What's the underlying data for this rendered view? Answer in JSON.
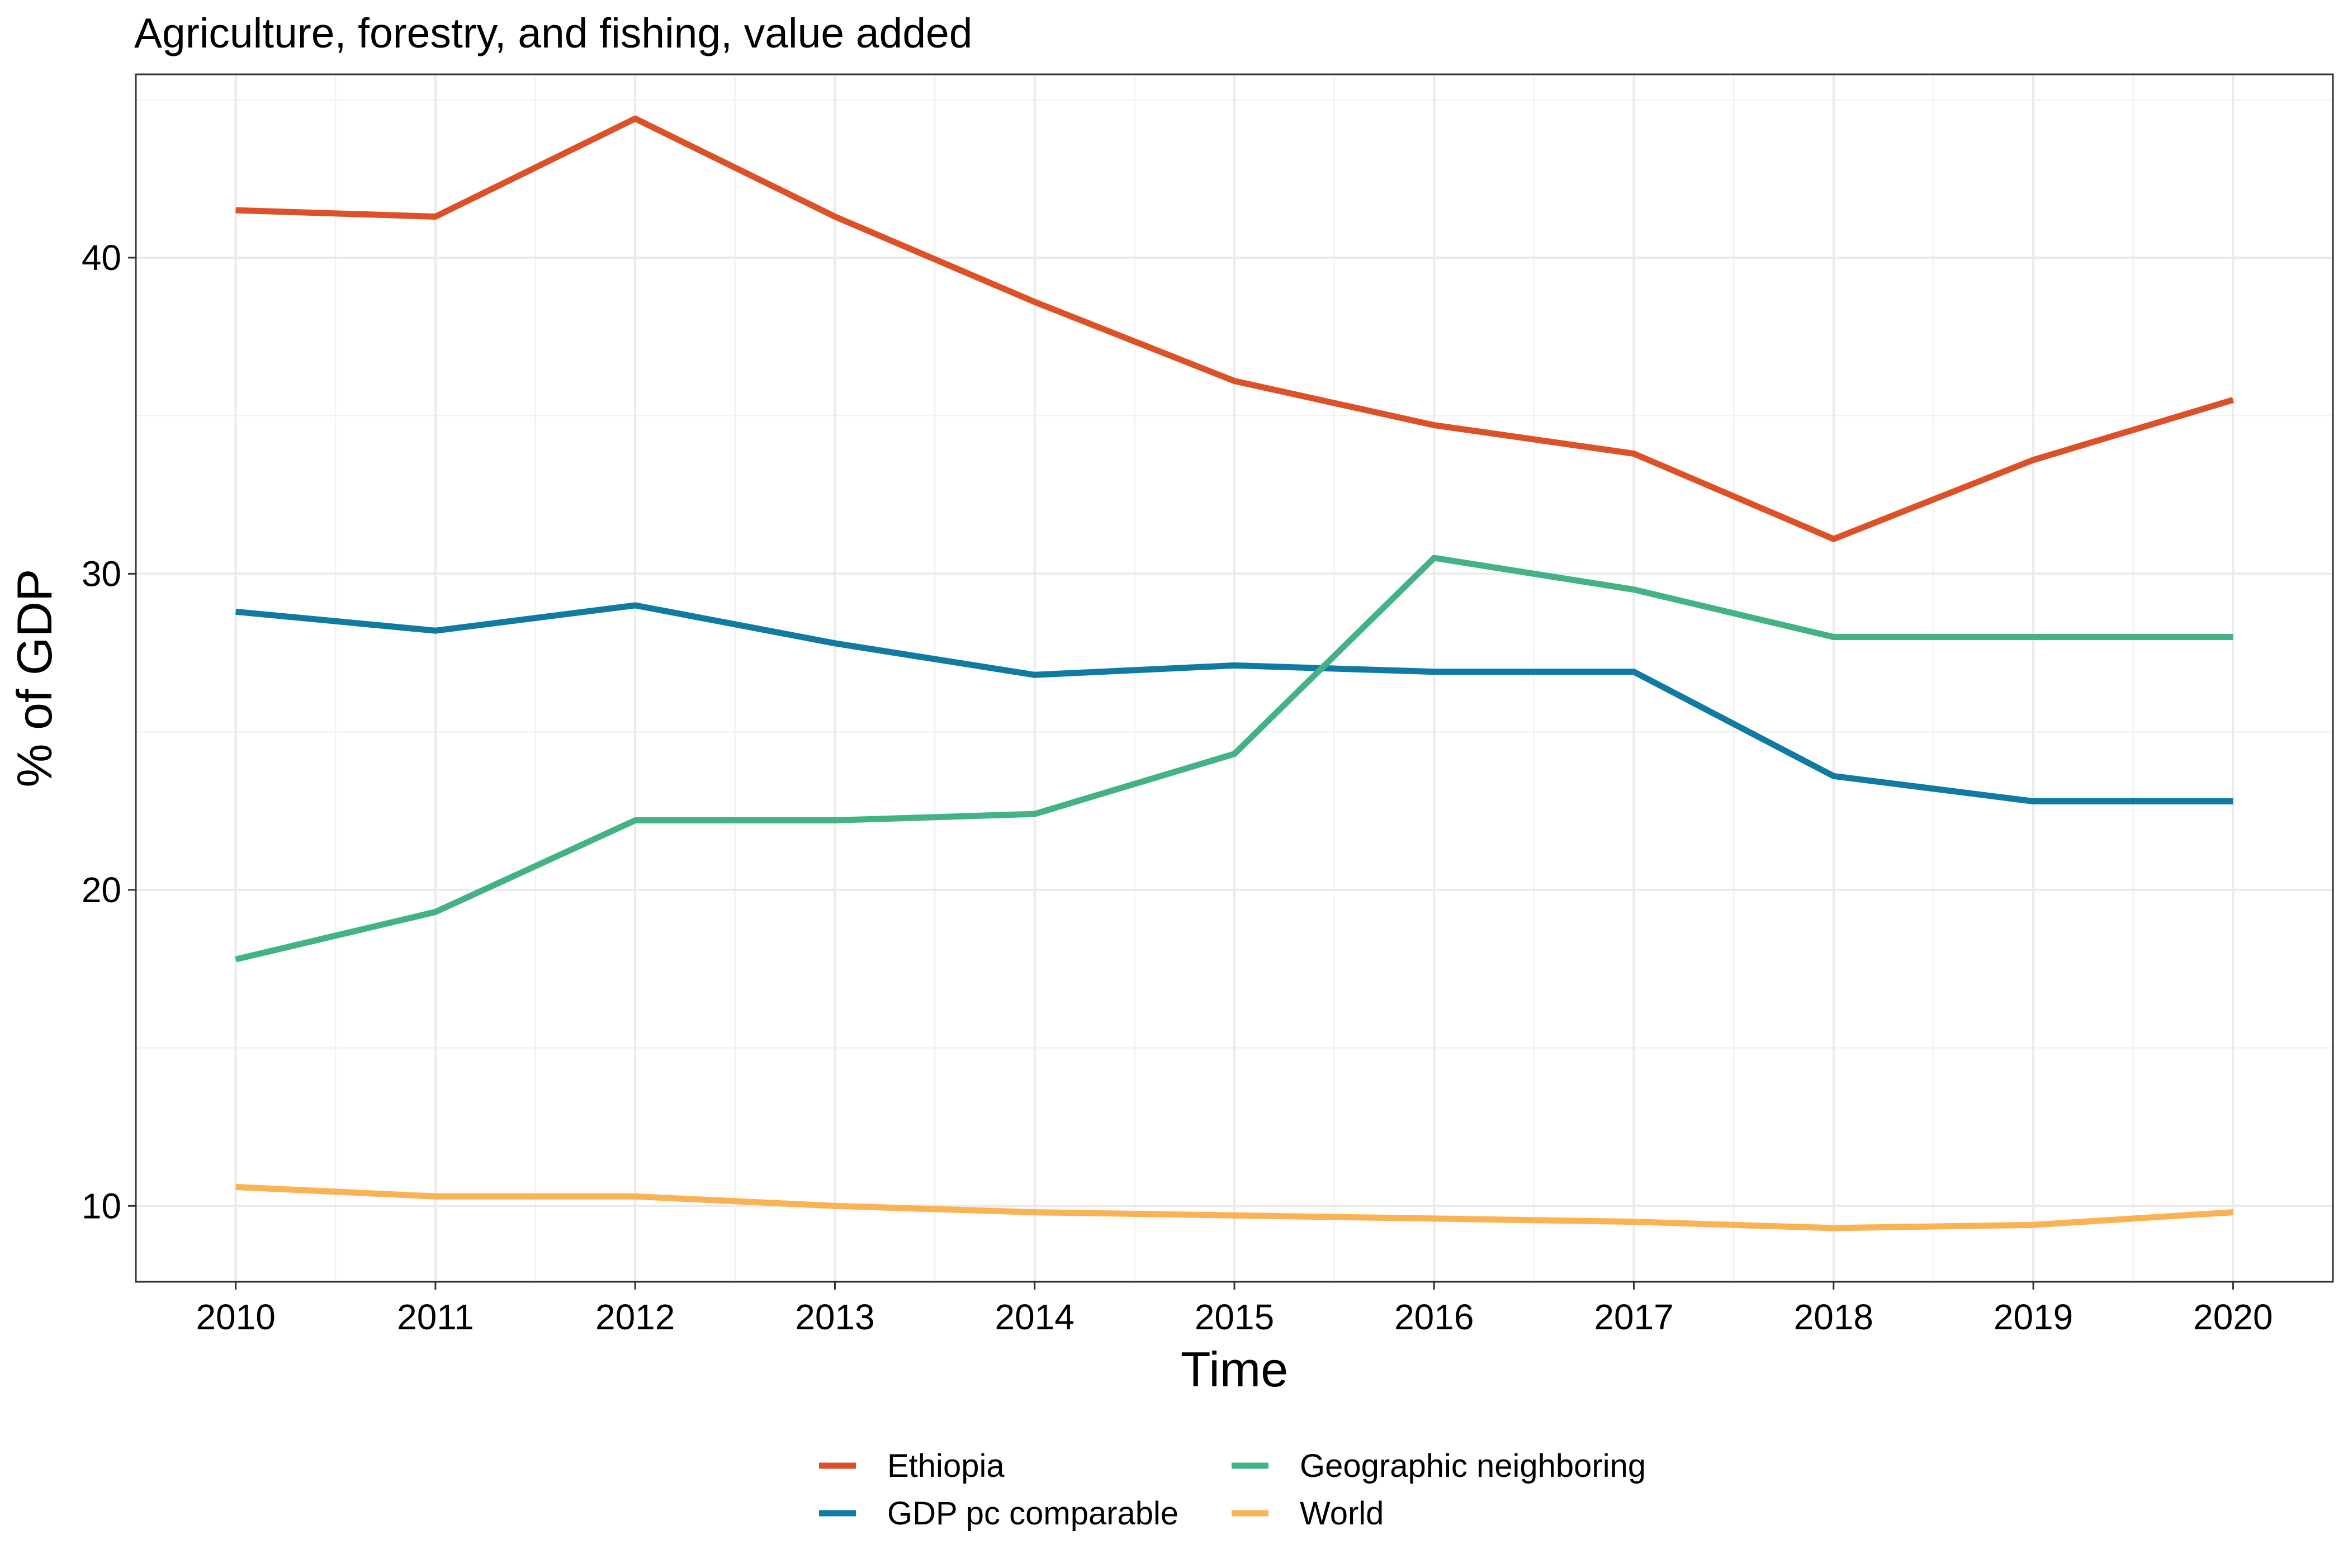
{
  "chart_data": {
    "type": "line",
    "title": "Agriculture, forestry, and fishing, value added",
    "xlabel": "Time",
    "ylabel": "% of GDP",
    "x": [
      2010,
      2011,
      2012,
      2013,
      2014,
      2015,
      2016,
      2017,
      2018,
      2019,
      2020
    ],
    "xlim": [
      2009.5,
      2020.5
    ],
    "ylim": [
      7.6,
      45.8
    ],
    "yticks": [
      10,
      20,
      30,
      40
    ],
    "grid": true,
    "legend_position": "bottom",
    "series": [
      {
        "name": "Ethiopia",
        "color": "#DD5129",
        "values": [
          41.5,
          41.3,
          44.4,
          41.3,
          38.6,
          36.1,
          34.7,
          33.8,
          31.1,
          33.6,
          35.5
        ]
      },
      {
        "name": "GDP pc comparable",
        "color": "#0F7BA2",
        "values": [
          28.8,
          28.2,
          29.0,
          27.8,
          26.8,
          27.1,
          26.9,
          26.9,
          23.6,
          22.8,
          22.8
        ]
      },
      {
        "name": "Geographic neighboring",
        "color": "#43B284",
        "values": [
          17.8,
          19.3,
          22.2,
          22.2,
          22.4,
          24.3,
          30.5,
          29.5,
          28.0,
          28.0,
          28.0
        ]
      },
      {
        "name": "World",
        "color": "#FAB255",
        "values": [
          10.6,
          10.3,
          10.3,
          10.0,
          9.8,
          9.7,
          9.6,
          9.5,
          9.3,
          9.4,
          9.8
        ]
      }
    ]
  }
}
